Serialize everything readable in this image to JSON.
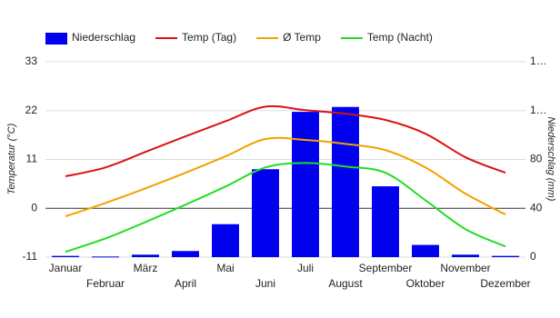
{
  "chart_data": {
    "type": "combo",
    "categories": [
      "Januar",
      "Februar",
      "März",
      "April",
      "Mai",
      "Juni",
      "Juli",
      "August",
      "September",
      "Oktober",
      "November",
      "Dezember"
    ],
    "y_label": "Temperatur (°C)",
    "y2_label": "Niederschlag (mm)",
    "ylim": [
      -11,
      33
    ],
    "yticks": [
      -11,
      0,
      11,
      22,
      33
    ],
    "y2lim": [
      0,
      160
    ],
    "y2ticks": [
      0,
      40,
      80,
      {
        "value": 120,
        "label": "1…"
      },
      {
        "value": 160,
        "label": "1…"
      }
    ],
    "grid": true,
    "legend": "top",
    "series": [
      {
        "name": "Niederschlag",
        "type": "bar",
        "axis": "y2",
        "color": "#0000ee",
        "values": [
          1,
          0.5,
          2,
          5,
          27,
          72,
          119,
          123,
          58,
          10,
          2,
          1
        ]
      },
      {
        "name": "Temp (Tag)",
        "type": "line",
        "color": "#dd1111",
        "values": [
          7.2,
          9.2,
          12.7,
          16.2,
          19.6,
          22.9,
          22.1,
          21.3,
          19.9,
          16.8,
          11.5,
          8.0
        ]
      },
      {
        "name": "Ø Temp",
        "type": "line",
        "color": "#f5a000",
        "values": [
          -1.8,
          1.2,
          4.5,
          8.0,
          11.7,
          15.6,
          15.4,
          14.5,
          13.1,
          9.2,
          3.3,
          -1.4
        ]
      },
      {
        "name": "Temp (Nacht)",
        "type": "line",
        "color": "#22dd22",
        "values": [
          -9.8,
          -6.8,
          -3.1,
          0.8,
          4.9,
          9.2,
          10.2,
          9.4,
          8.0,
          1.8,
          -4.7,
          -8.6
        ]
      }
    ]
  }
}
